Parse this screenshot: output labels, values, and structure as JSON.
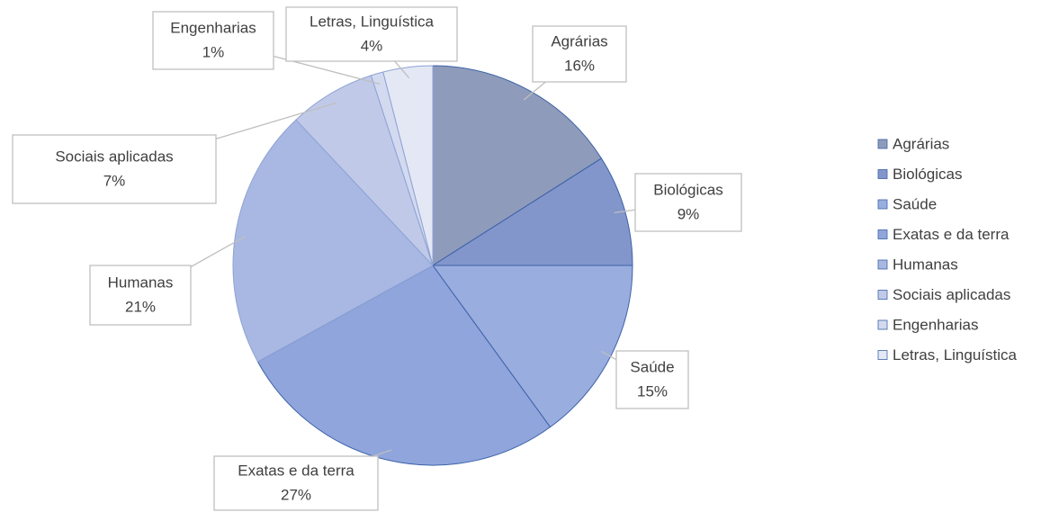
{
  "chart_data": {
    "type": "pie",
    "categories": [
      "Agrárias",
      "Biológicas",
      "Saúde",
      "Exatas e da terra",
      "Humanas",
      "Sociais aplicadas",
      "Engenharias",
      "Letras, Linguística"
    ],
    "values": [
      16,
      9,
      15,
      27,
      21,
      7,
      1,
      4
    ],
    "value_labels": [
      "16%",
      "9%",
      "15%",
      "27%",
      "21%",
      "7%",
      "1%",
      "4%"
    ],
    "colors": [
      "#8e9bbb",
      "#8396cb",
      "#9aaddf",
      "#8fa5dc",
      "#a8b8e2",
      "#c0cae8",
      "#d3daef",
      "#e4e8f5"
    ],
    "legend": "right"
  }
}
